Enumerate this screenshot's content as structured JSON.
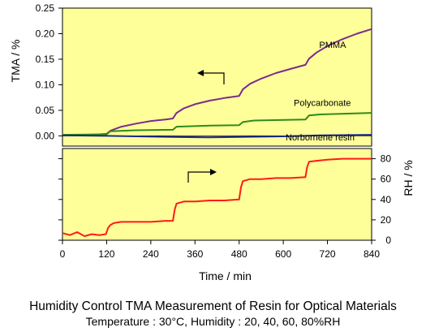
{
  "chart_data": {
    "type": "line",
    "title": "Humidity Control TMA Measurement of Resin for Optical Materials",
    "subtitle": "Temperature : 30°C, Humidity : 20, 40, 60, 80%RH",
    "xlabel": "Time / min",
    "xlim": [
      0,
      840
    ],
    "xticks": [
      0,
      120,
      240,
      360,
      480,
      600,
      720,
      840
    ],
    "upper_panel": {
      "ylabel": "TMA / %",
      "ylim": [
        -0.02,
        0.25
      ],
      "yticks": [
        "0.00",
        "0.05",
        "0.10",
        "0.15",
        "0.20",
        "0.25"
      ],
      "series": [
        {
          "name": "PMMA",
          "color": "#7b2a8f",
          "x": [
            0,
            80,
            120,
            130,
            160,
            200,
            240,
            280,
            300,
            310,
            330,
            360,
            400,
            440,
            480,
            490,
            510,
            540,
            580,
            620,
            660,
            670,
            690,
            720,
            760,
            800,
            840
          ],
          "y": [
            0.001,
            0.002,
            0.004,
            0.01,
            0.018,
            0.024,
            0.029,
            0.032,
            0.034,
            0.045,
            0.054,
            0.062,
            0.069,
            0.074,
            0.078,
            0.091,
            0.102,
            0.112,
            0.123,
            0.131,
            0.139,
            0.151,
            0.163,
            0.176,
            0.189,
            0.2,
            0.209
          ]
        },
        {
          "name": "Polycarbonate",
          "color": "#2f8a1c",
          "x": [
            0,
            120,
            130,
            200,
            300,
            310,
            400,
            480,
            490,
            520,
            660,
            670,
            700,
            840
          ],
          "y": [
            0.002,
            0.003,
            0.009,
            0.011,
            0.012,
            0.018,
            0.02,
            0.021,
            0.027,
            0.03,
            0.032,
            0.04,
            0.042,
            0.045
          ]
        },
        {
          "name": "Norbornene resin",
          "color": "#1c2a8a",
          "x": [
            0,
            120,
            200,
            300,
            400,
            480,
            600,
            700,
            840
          ],
          "y": [
            0.001,
            0.0,
            -0.001,
            -0.002,
            -0.003,
            -0.002,
            -0.001,
            0.001,
            0.002
          ]
        }
      ],
      "arrow": "left"
    },
    "lower_panel": {
      "ylabel": "RH / %",
      "ylim": [
        0,
        90
      ],
      "yticks": [
        "0",
        "20",
        "40",
        "60",
        "80"
      ],
      "series": [
        {
          "name": "RH",
          "color": "#ff1a1a",
          "x": [
            0,
            20,
            40,
            60,
            80,
            100,
            118,
            124,
            130,
            140,
            160,
            200,
            240,
            280,
            300,
            305,
            310,
            330,
            360,
            400,
            440,
            480,
            485,
            490,
            510,
            540,
            580,
            620,
            660,
            665,
            670,
            690,
            720,
            760,
            800,
            840
          ],
          "y": [
            7,
            5,
            8,
            4,
            6,
            5,
            6,
            12,
            15,
            17,
            18,
            18,
            18,
            19,
            19,
            30,
            36,
            38,
            38,
            39,
            39,
            40,
            52,
            58,
            60,
            60,
            61,
            61,
            62,
            72,
            77,
            78,
            79,
            80,
            80,
            80
          ]
        }
      ],
      "arrow": "right"
    }
  }
}
